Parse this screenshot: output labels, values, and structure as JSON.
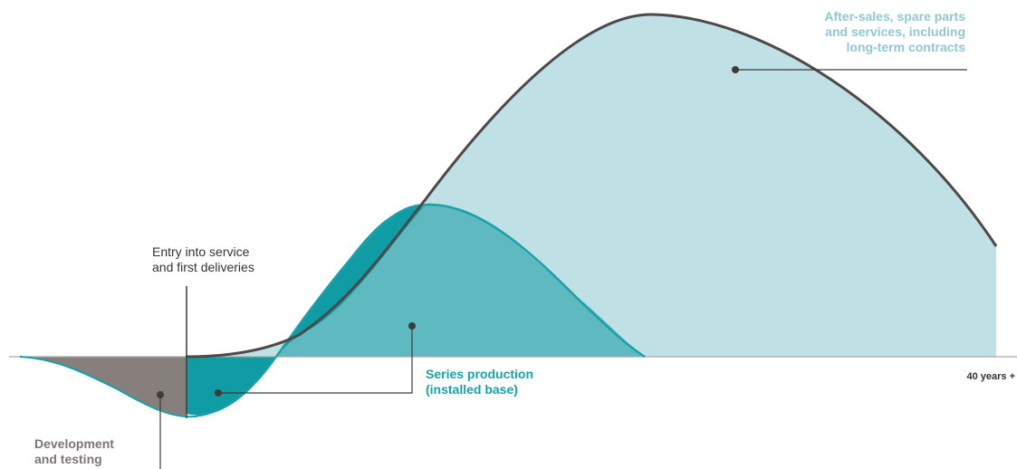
{
  "labels": {
    "aftersales": [
      "After-sales, spare parts",
      "and services, including",
      "long-term contracts"
    ],
    "entry": [
      "Entry into service",
      "and first deliveries"
    ],
    "series": [
      "Series production",
      "(installed base)"
    ],
    "development": [
      "Development",
      "and testing"
    ],
    "x_end": "40 years +"
  },
  "colors": {
    "aftersales": "#8fc9cf",
    "series": "#19a1a9",
    "series_light": "#5fb9c0",
    "development": "#87807d",
    "curve": "#4d4948",
    "baseline": "#9a9a9a",
    "label_teal": "#19a1a9",
    "label_gray": "#7b7573",
    "label_aftersales": "#8fc9cf"
  }
}
